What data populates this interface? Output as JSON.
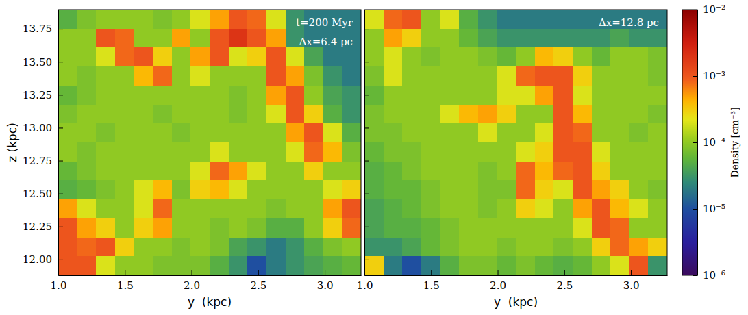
{
  "chart_data": [
    {
      "type": "heatmap",
      "x_label": "y  (kpc)",
      "y_label": "z (kpc)",
      "annotations": [
        "t=200 Myr",
        "Δx=6.4 pc"
      ],
      "xlim": [
        1.0,
        3.272
      ],
      "ylim": [
        11.88,
        13.896
      ],
      "xticks": [
        {
          "value": 1,
          "label": "1.0"
        },
        1.5,
        {
          "value": 2,
          "label": "2.0"
        },
        2.5,
        {
          "value": 3,
          "label": "3.0"
        }
      ],
      "yticks": [
        {
          "value": 12,
          "label": "12.00"
        },
        12.25,
        {
          "value": 12.5,
          "label": "12.50"
        },
        12.75,
        {
          "value": 13,
          "label": "13.00"
        },
        13.25,
        {
          "value": 13.5,
          "label": "13.50"
        },
        13.75
      ],
      "x": [
        1.071,
        1.213,
        1.355,
        1.497,
        1.639,
        1.781,
        1.923,
        2.065,
        2.207,
        2.349,
        2.491,
        2.633,
        2.775,
        2.917,
        3.059,
        3.201
      ],
      "y": [
        13.824,
        13.68,
        13.536,
        13.392,
        13.248,
        13.104,
        12.96,
        12.816,
        12.672,
        12.528,
        12.384,
        12.24,
        12.096,
        11.952
      ],
      "values": [
        [
          5e-05,
          8e-05,
          0.0001,
          0.0001,
          0.0001,
          8e-05,
          0.0001,
          0.0002,
          0.0005,
          0.001,
          0.0008,
          0.0002,
          3e-05,
          2e-05,
          2e-05,
          2e-05
        ],
        [
          0.0001,
          0.0001,
          0.001,
          0.0008,
          0.0001,
          0.0001,
          0.0005,
          0.0001,
          0.001,
          0.002,
          0.001,
          0.0005,
          3e-05,
          2e-05,
          2e-05,
          2e-05
        ],
        [
          0.0001,
          0.0001,
          0.0002,
          0.0008,
          0.001,
          0.0003,
          0.0001,
          0.0005,
          0.001,
          0.0002,
          0.0003,
          0.001,
          0.0002,
          4e-05,
          2e-05,
          2e-05
        ],
        [
          0.0001,
          8e-05,
          0.0001,
          0.0001,
          0.0004,
          0.0008,
          0.0001,
          0.0002,
          0.0001,
          0.0001,
          0.0001,
          0.001,
          0.0005,
          8e-05,
          3e-05,
          2e-05
        ],
        [
          6e-05,
          8e-05,
          0.0001,
          0.0001,
          0.0001,
          0.0001,
          0.0001,
          0.0001,
          0.0001,
          8e-05,
          0.0001,
          0.0005,
          0.001,
          0.0001,
          4e-05,
          3e-05
        ],
        [
          8e-05,
          0.0001,
          0.0001,
          0.0001,
          0.0001,
          8e-05,
          0.0001,
          0.0001,
          0.0001,
          8e-05,
          0.0001,
          0.0002,
          0.001,
          0.0003,
          5e-05,
          3e-05
        ],
        [
          0.0001,
          0.0001,
          8e-05,
          0.0001,
          0.0001,
          0.0001,
          8e-05,
          0.0001,
          0.0001,
          0.0001,
          0.0001,
          0.0001,
          0.0005,
          0.001,
          0.0002,
          5e-05
        ],
        [
          0.0001,
          8e-05,
          0.0001,
          0.0001,
          0.0001,
          0.0001,
          0.0001,
          0.0001,
          0.0002,
          0.0001,
          0.0001,
          0.0001,
          0.0002,
          0.0008,
          0.0004,
          8e-05
        ],
        [
          6e-05,
          8e-05,
          0.0001,
          0.0001,
          0.0001,
          0.0001,
          0.0001,
          0.0002,
          0.0008,
          0.0005,
          0.0002,
          0.0001,
          0.0001,
          0.0003,
          0.0001,
          0.0001
        ],
        [
          5e-05,
          6e-05,
          8e-05,
          0.0001,
          0.0002,
          0.0004,
          8e-05,
          0.0003,
          0.0004,
          0.0002,
          0.0001,
          0.0001,
          0.0001,
          0.0001,
          0.0002,
          0.0003
        ],
        [
          0.0005,
          0.0002,
          0.0001,
          0.0001,
          0.0002,
          0.0008,
          0.0001,
          0.0001,
          0.0001,
          0.0001,
          0.0001,
          8e-05,
          0.0001,
          0.0001,
          0.0005,
          0.001
        ],
        [
          0.001,
          0.0005,
          0.0003,
          0.0001,
          0.0003,
          0.0005,
          0.0001,
          0.0001,
          8e-05,
          0.0001,
          8e-05,
          5e-05,
          5e-05,
          0.0001,
          0.0003,
          0.0008
        ],
        [
          0.001,
          0.0008,
          0.001,
          0.0003,
          0.0001,
          0.0001,
          8e-05,
          0.0001,
          8e-05,
          4e-05,
          3e-05,
          2e-05,
          3e-05,
          5e-05,
          8e-05,
          0.0001
        ],
        [
          0.001,
          0.001,
          0.0002,
          0.0001,
          0.0001,
          8e-05,
          8e-05,
          8e-05,
          5e-05,
          3e-05,
          1e-05,
          2e-05,
          3e-05,
          4e-05,
          5e-05,
          6e-05
        ]
      ]
    },
    {
      "type": "heatmap",
      "x_label": "y  (kpc)",
      "annotations": [
        "Δx=12.8 pc"
      ],
      "tick_labels": "x",
      "xlim": [
        1.0,
        3.272
      ],
      "ylim": [
        11.88,
        13.896
      ],
      "xticks": [
        {
          "value": 1,
          "label": "1.0"
        },
        1.5,
        {
          "value": 2,
          "label": "2.0"
        },
        2.5,
        {
          "value": 3,
          "label": "3.0"
        }
      ],
      "yticks": [
        12,
        12.25,
        12.5,
        12.75,
        13,
        13.25,
        13.5,
        13.75
      ],
      "x": [
        1.071,
        1.213,
        1.355,
        1.497,
        1.639,
        1.781,
        1.923,
        2.065,
        2.207,
        2.349,
        2.491,
        2.633,
        2.775,
        2.917,
        3.059,
        3.201
      ],
      "y": [
        13.824,
        13.68,
        13.536,
        13.392,
        13.248,
        13.104,
        12.96,
        12.816,
        12.672,
        12.528,
        12.384,
        12.24,
        12.096,
        11.952
      ],
      "values": [
        [
          0.0002,
          0.0008,
          0.001,
          0.0001,
          0.0002,
          5e-05,
          3e-05,
          2e-05,
          2e-05,
          2e-05,
          2e-05,
          2e-05,
          2e-05,
          2e-05,
          2e-05,
          2e-05
        ],
        [
          0.0001,
          0.0005,
          0.0003,
          0.0001,
          0.0001,
          6e-05,
          4e-05,
          3e-05,
          3e-05,
          3e-05,
          3e-05,
          3e-05,
          3e-05,
          4e-05,
          3e-05,
          3e-05
        ],
        [
          0.0001,
          0.0002,
          0.0001,
          8e-05,
          0.0001,
          0.0001,
          8e-05,
          6e-05,
          0.0001,
          0.0004,
          0.0003,
          0.0001,
          6e-05,
          0.0001,
          0.0001,
          8e-05
        ],
        [
          8e-05,
          0.0002,
          0.0001,
          0.0001,
          0.0001,
          0.0001,
          0.0001,
          0.0002,
          0.0008,
          0.001,
          0.001,
          0.0003,
          0.0001,
          0.0001,
          0.0001,
          8e-05
        ],
        [
          6e-05,
          0.0001,
          0.0001,
          0.0001,
          0.0001,
          0.0001,
          0.0001,
          0.0002,
          0.0002,
          0.0005,
          0.001,
          0.0002,
          0.0001,
          0.0001,
          0.0001,
          0.0001
        ],
        [
          8e-05,
          0.0001,
          0.0001,
          0.0001,
          0.0002,
          0.0004,
          0.0005,
          0.0003,
          0.0001,
          0.0001,
          0.001,
          0.0004,
          0.0001,
          0.0001,
          0.0001,
          8e-05
        ],
        [
          8e-05,
          8e-05,
          0.0001,
          0.0001,
          0.0001,
          0.0001,
          0.0002,
          0.0001,
          0.0001,
          0.0002,
          0.001,
          0.0008,
          0.0001,
          0.0001,
          8e-05,
          0.0001
        ],
        [
          6e-05,
          8e-05,
          8e-05,
          0.0001,
          0.0001,
          0.0001,
          0.0001,
          0.0001,
          0.0002,
          0.0003,
          0.001,
          0.001,
          0.0002,
          0.0001,
          0.0001,
          0.0001
        ],
        [
          5e-05,
          6e-05,
          8e-05,
          0.0001,
          0.0001,
          0.0001,
          8e-05,
          0.0001,
          0.0008,
          0.0004,
          0.0008,
          0.001,
          0.0003,
          0.0001,
          0.0001,
          0.0001
        ],
        [
          5e-05,
          6e-05,
          6e-05,
          8e-05,
          0.0001,
          0.0001,
          8e-05,
          8e-05,
          0.0008,
          0.0003,
          0.0002,
          0.001,
          0.0005,
          0.0003,
          0.0001,
          8e-05
        ],
        [
          4e-05,
          5e-05,
          6e-05,
          8e-05,
          0.0001,
          0.0001,
          8e-05,
          0.0001,
          0.0003,
          0.0002,
          0.0001,
          0.0005,
          0.001,
          0.0004,
          0.0002,
          0.0001
        ],
        [
          4e-05,
          5e-05,
          5e-05,
          6e-05,
          8e-05,
          0.0001,
          0.0001,
          0.0001,
          0.0001,
          0.0001,
          0.0001,
          0.0002,
          0.001,
          0.0008,
          0.0001,
          0.0001
        ],
        [
          3e-05,
          3e-05,
          4e-05,
          6e-05,
          8e-05,
          0.0001,
          0.0001,
          8e-05,
          0.0001,
          0.0001,
          8e-05,
          0.0001,
          0.0003,
          0.0008,
          0.0005,
          0.0003
        ],
        [
          0.0003,
          2e-05,
          1e-05,
          2e-05,
          5e-05,
          8e-05,
          8e-05,
          6e-05,
          8e-05,
          6e-05,
          5e-05,
          6e-05,
          0.0001,
          0.0002,
          0.001,
          3e-05
        ]
      ],
      "colorbar": {
        "label": "Density [cm⁻³]",
        "log": true,
        "lim": [
          1e-06,
          0.01
        ],
        "ticks": [
          {
            "value": 1e-06,
            "label": "10⁻⁶"
          },
          {
            "value": 1e-05,
            "label": "10⁻⁵"
          },
          {
            "value": 0.0001,
            "label": "10⁻⁴"
          },
          {
            "value": 0.001,
            "label": "10⁻³"
          },
          {
            "value": 0.01,
            "label": "10⁻²"
          }
        ]
      }
    }
  ]
}
